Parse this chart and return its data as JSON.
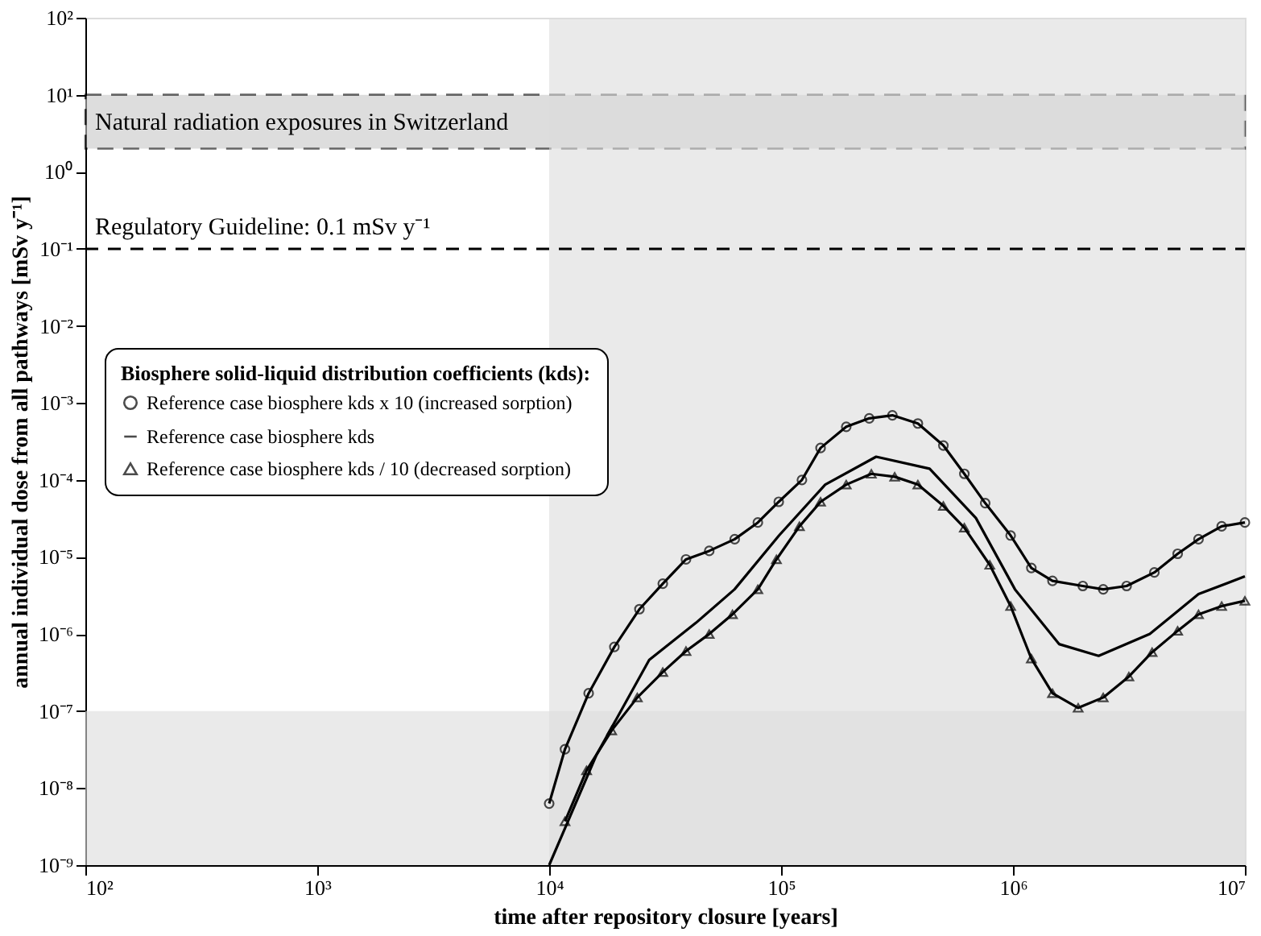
{
  "chart_data": {
    "type": "line",
    "xlabel": "time after repository closure [years]",
    "ylabel": "annual individual dose from all pathways [mSv y⁻¹]",
    "legend_title": "Biosphere solid-liquid distribution coefficients (kds):",
    "legend": "left",
    "log": "xy",
    "grid": false,
    "line_style": "solid",
    "xlim": [
      100,
      10000000
    ],
    "ylim": [
      1e-09,
      100
    ],
    "xticks": [
      {
        "value": 100,
        "label": "10²"
      },
      {
        "value": 1000,
        "label": "10³"
      },
      {
        "value": 10000,
        "label": "10⁴"
      },
      {
        "value": 100000,
        "label": "10⁵"
      },
      {
        "value": 1000000,
        "label": "10⁶"
      },
      {
        "value": 10000000,
        "label": "10⁷"
      }
    ],
    "yticks": [
      {
        "value": 100,
        "label": "10²"
      },
      {
        "value": 10,
        "label": "10¹"
      },
      {
        "value": 1,
        "label": "10⁰"
      },
      {
        "value": 0.1,
        "label": "10⁻¹"
      },
      {
        "value": 0.01,
        "label": "10⁻²"
      },
      {
        "value": 0.001,
        "label": "10⁻³"
      },
      {
        "value": 0.0001,
        "label": "10⁻⁴"
      },
      {
        "value": 1e-05,
        "label": "10⁻⁵"
      },
      {
        "value": 1e-06,
        "label": "10⁻⁶"
      },
      {
        "value": 1e-07,
        "label": "10⁻⁷"
      },
      {
        "value": 1e-08,
        "label": "10⁻⁸"
      },
      {
        "value": 1e-09,
        "label": "10⁻⁹"
      }
    ],
    "bands": [
      {
        "axis": "y",
        "from": 2,
        "to": 10,
        "label": "Natural radiation exposures in Switzerland",
        "color": "#c8c8c8"
      },
      {
        "axis": "x",
        "from": 10000,
        "to": 10000000,
        "color": "#dcdcdc"
      },
      {
        "axis": "y",
        "from": 1e-09,
        "to": 1e-07,
        "color": "#dcdcdc"
      }
    ],
    "ref_lines": [
      {
        "axis": "y",
        "value": 0.1,
        "label": "Regulatory Guideline: 0.1 mSv y⁻¹",
        "line_style": "dashed",
        "color": "#000000"
      }
    ],
    "series": [
      {
        "name": "Reference case biosphere kds x 10 (increased sorption)",
        "color": "#000000",
        "marker": "circle",
        "x": [
          10000,
          11700,
          14800,
          19100,
          24500,
          30900,
          38900,
          49000,
          63100,
          79400,
          97700,
          123000,
          148000,
          191000,
          240000,
          302000,
          389000,
          501000,
          617000,
          759000,
          977000,
          1200000,
          1480000,
          2000000,
          2450000,
          3090000,
          4070000,
          5130000,
          6310000,
          7940000,
          10000000
        ],
        "values": [
          6.3e-09,
          3.2e-08,
          1.7e-07,
          6.8e-07,
          2.1e-06,
          4.5e-06,
          9.3e-06,
          1.2e-05,
          1.7e-05,
          2.8e-05,
          5.2e-05,
          0.0001,
          0.00026,
          0.00049,
          0.00063,
          0.00069,
          0.00054,
          0.00028,
          0.00012,
          5e-05,
          1.9e-05,
          7.2e-06,
          4.9e-06,
          4.2e-06,
          3.8e-06,
          4.2e-06,
          6.3e-06,
          1.1e-05,
          1.7e-05,
          2.5e-05,
          2.8e-05
        ]
      },
      {
        "name": "Reference case biosphere kds",
        "color": "#000000",
        "marker": "none",
        "x": [
          10000,
          16000,
          27000,
          43000,
          63000,
          98000,
          155000,
          257000,
          437000,
          692000,
          1020000,
          1580000,
          2340000,
          3890000,
          6310000,
          10000000
        ],
        "values": [
          1e-09,
          2.7e-08,
          4.6e-07,
          1.4e-06,
          3.8e-06,
          1.9e-05,
          8.7e-05,
          0.0002,
          0.00014,
          3.2e-05,
          3.8e-06,
          7.4e-07,
          5.2e-07,
          1e-06,
          3.3e-06,
          5.6e-06
        ]
      },
      {
        "name": "Reference case biosphere kds / 10 (decreased sorption)",
        "color": "#000000",
        "marker": "triangle",
        "x": [
          11700,
          14500,
          18600,
          24000,
          30900,
          38900,
          49000,
          61700,
          79400,
          95500,
          120000,
          148000,
          191000,
          245000,
          309000,
          389000,
          501000,
          617000,
          794000,
          977000,
          1200000,
          1480000,
          1910000,
          2450000,
          3160000,
          3980000,
          5130000,
          6310000,
          7940000,
          10000000
        ],
        "values": [
          3.7e-09,
          1.7e-08,
          5.6e-08,
          1.5e-07,
          3.2e-07,
          6e-07,
          1e-06,
          1.8e-06,
          3.8e-06,
          9.3e-06,
          2.5e-05,
          5.2e-05,
          8.7e-05,
          0.00012,
          0.00011,
          8.7e-05,
          4.6e-05,
          2.4e-05,
          7.9e-06,
          2.3e-06,
          4.8e-07,
          1.7e-07,
          1.1e-07,
          1.5e-07,
          2.8e-07,
          5.8e-07,
          1.1e-06,
          1.8e-06,
          2.3e-06,
          2.7e-06
        ]
      }
    ]
  }
}
